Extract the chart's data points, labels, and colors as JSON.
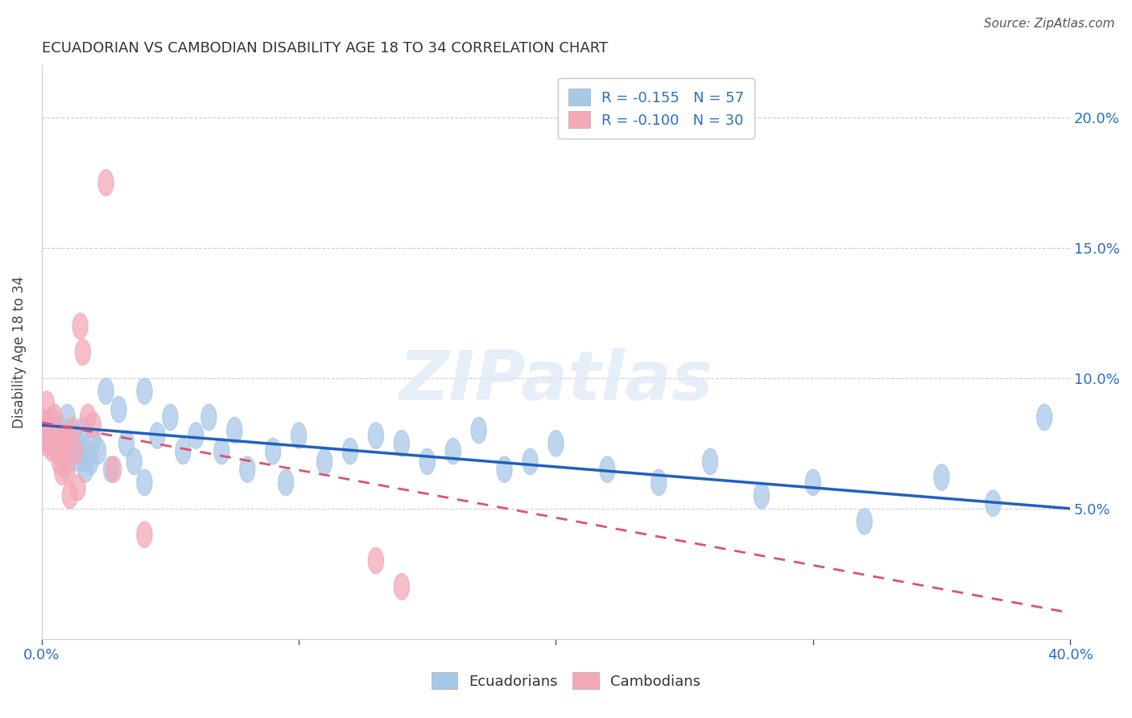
{
  "title": "ECUADORIAN VS CAMBODIAN DISABILITY AGE 18 TO 34 CORRELATION CHART",
  "source": "Source: ZipAtlas.com",
  "ylabel": "Disability Age 18 to 34",
  "xlim": [
    0.0,
    0.4
  ],
  "ylim": [
    0.0,
    0.22
  ],
  "xticks": [
    0.0,
    0.1,
    0.2,
    0.3,
    0.4
  ],
  "xticklabels_ends": [
    "0.0%",
    "",
    "",
    "",
    "40.0%"
  ],
  "yticks": [
    0.05,
    0.1,
    0.15,
    0.2
  ],
  "yticklabels": [
    "5.0%",
    "10.0%",
    "15.0%",
    "20.0%"
  ],
  "grid_color": "#cccccc",
  "background_color": "#ffffff",
  "ecuadorian_color": "#a8c8e8",
  "cambodian_color": "#f4a8b8",
  "ecuadorian_line_color": "#2060c0",
  "cambodian_line_color": "#e05070",
  "legend_R_ecuadorian": "-0.155",
  "legend_N_ecuadorian": "57",
  "legend_R_cambodian": "-0.100",
  "legend_N_cambodian": "30",
  "watermark": "ZIPatlas",
  "tick_color": "#555555",
  "label_color": "#2b6ec8",
  "ecuadorian_x": [
    0.002,
    0.003,
    0.004,
    0.005,
    0.006,
    0.007,
    0.008,
    0.009,
    0.01,
    0.01,
    0.012,
    0.013,
    0.014,
    0.015,
    0.016,
    0.017,
    0.018,
    0.019,
    0.02,
    0.022,
    0.025,
    0.027,
    0.03,
    0.033,
    0.036,
    0.04,
    0.04,
    0.045,
    0.05,
    0.055,
    0.06,
    0.065,
    0.07,
    0.075,
    0.08,
    0.09,
    0.095,
    0.1,
    0.11,
    0.12,
    0.13,
    0.14,
    0.15,
    0.16,
    0.17,
    0.18,
    0.19,
    0.2,
    0.22,
    0.24,
    0.26,
    0.28,
    0.3,
    0.32,
    0.35,
    0.37,
    0.39
  ],
  "ecuadorian_y": [
    0.082,
    0.076,
    0.079,
    0.083,
    0.077,
    0.073,
    0.08,
    0.074,
    0.085,
    0.068,
    0.078,
    0.072,
    0.075,
    0.069,
    0.08,
    0.065,
    0.071,
    0.068,
    0.076,
    0.072,
    0.095,
    0.065,
    0.088,
    0.075,
    0.068,
    0.095,
    0.06,
    0.078,
    0.085,
    0.072,
    0.078,
    0.085,
    0.072,
    0.08,
    0.065,
    0.072,
    0.06,
    0.078,
    0.068,
    0.072,
    0.078,
    0.075,
    0.068,
    0.072,
    0.08,
    0.065,
    0.068,
    0.075,
    0.065,
    0.06,
    0.068,
    0.055,
    0.06,
    0.045,
    0.062,
    0.052,
    0.085
  ],
  "cambodian_x": [
    0.001,
    0.001,
    0.002,
    0.002,
    0.003,
    0.004,
    0.004,
    0.005,
    0.006,
    0.006,
    0.007,
    0.007,
    0.008,
    0.008,
    0.009,
    0.01,
    0.01,
    0.011,
    0.012,
    0.013,
    0.014,
    0.015,
    0.016,
    0.018,
    0.02,
    0.025,
    0.028,
    0.04,
    0.13,
    0.14
  ],
  "cambodian_y": [
    0.083,
    0.077,
    0.09,
    0.075,
    0.083,
    0.079,
    0.073,
    0.085,
    0.08,
    0.072,
    0.077,
    0.068,
    0.075,
    0.064,
    0.072,
    0.076,
    0.065,
    0.055,
    0.08,
    0.072,
    0.058,
    0.12,
    0.11,
    0.085,
    0.082,
    0.175,
    0.065,
    0.04,
    0.03,
    0.02
  ],
  "ecu_line_x0": 0.0,
  "ecu_line_y0": 0.082,
  "ecu_line_x1": 0.4,
  "ecu_line_y1": 0.05,
  "cam_line_x0": 0.0,
  "cam_line_y0": 0.083,
  "cam_line_x1": 0.4,
  "cam_line_y1": 0.01
}
